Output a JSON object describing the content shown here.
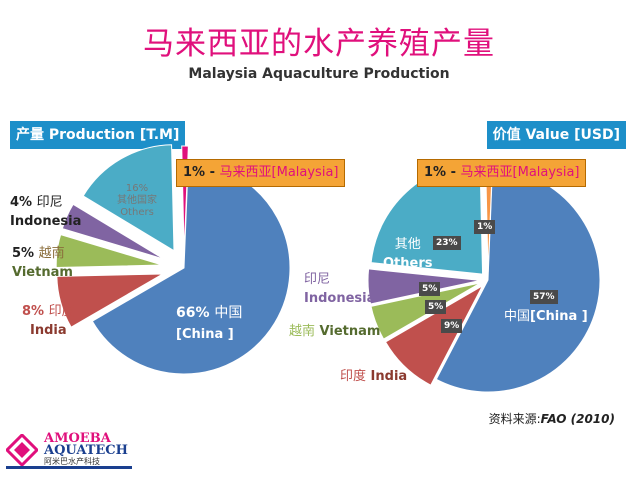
{
  "title_cn": "马来西亚的水产养殖产量",
  "title_en": "Malaysia Aquaculture Production",
  "source": {
    "prefix": "资料来源:",
    "text": "FAO (2010)"
  },
  "logo": {
    "line1": "AMOEBA",
    "line2": "AQUATECH",
    "line3": "阿米巴水产科技"
  },
  "colors": {
    "china": "#4f81bd",
    "india": "#c0504d",
    "vietnam": "#9bbb59",
    "indonesia": "#8064a2",
    "others": "#4bacc6",
    "malaysia": "#e0107c",
    "malaysia_value": "#f79646"
  },
  "chart_data": [
    {
      "type": "pie",
      "title": "产量 Production [T.M]",
      "slices": [
        {
          "label_cn": "中国",
          "label_en": "[China ]",
          "value": 66
        },
        {
          "label_cn": "印度",
          "label_en": "India",
          "value": 8
        },
        {
          "label_cn": "越南",
          "label_en": "Vietnam",
          "value": 5
        },
        {
          "label_cn": "印尼",
          "label_en": "Indonesia",
          "value": 4
        },
        {
          "label_cn": "其他国家",
          "label_en": "Others",
          "value": 16
        },
        {
          "label_cn": "马来西亚",
          "label_en": "[Malaysia]",
          "value": 1
        }
      ],
      "labels": {
        "china_pct": "66%",
        "china_cn": "中国",
        "china_en": "[China ]",
        "india_pct": "8%",
        "india_cn": "印度",
        "india_en": "India",
        "vietnam_pct": "5%",
        "vietnam_cn": "越南",
        "vietnam_en": "Vietnam",
        "indonesia_pct": "4%",
        "indonesia_cn": "印尼",
        "indonesia_en": "Indonesia",
        "others_pct": "16%",
        "others_cn": "其他国家",
        "others_en": "Others",
        "malaysia_pct": "1%",
        "malaysia_text": "马来西亚[Malaysia]"
      }
    },
    {
      "type": "pie",
      "title": "价值 Value [USD]",
      "slices": [
        {
          "label_cn": "中国",
          "label_en": "[China ]",
          "value": 57
        },
        {
          "label_cn": "印度",
          "label_en": "India",
          "value": 9
        },
        {
          "label_cn": "越南",
          "label_en": "Vietnam",
          "value": 5
        },
        {
          "label_cn": "印尼",
          "label_en": "Indonesia",
          "value": 5
        },
        {
          "label_cn": "其他",
          "label_en": "Others",
          "value": 23
        },
        {
          "label_cn": "马来西亚",
          "label_en": "[Malaysia]",
          "value": 1
        }
      ],
      "labels": {
        "china_pct": "57%",
        "china_cn": "中国",
        "china_en": "[China ]",
        "india_pct": "9%",
        "india_cn": "印度",
        "india_en": "India",
        "vietnam_pct": "5%",
        "vietnam_cn": "越南",
        "vietnam_en": "Vietnam",
        "indonesia_pct": "5%",
        "indonesia_cn": "印尼",
        "indonesia_en": "Indonesia",
        "others_pct": "23%",
        "others_cn": "其他",
        "others_en": "Others",
        "malaysia_pct": "1%",
        "malaysia_text": "马来西亚[Malaysia]"
      }
    }
  ]
}
